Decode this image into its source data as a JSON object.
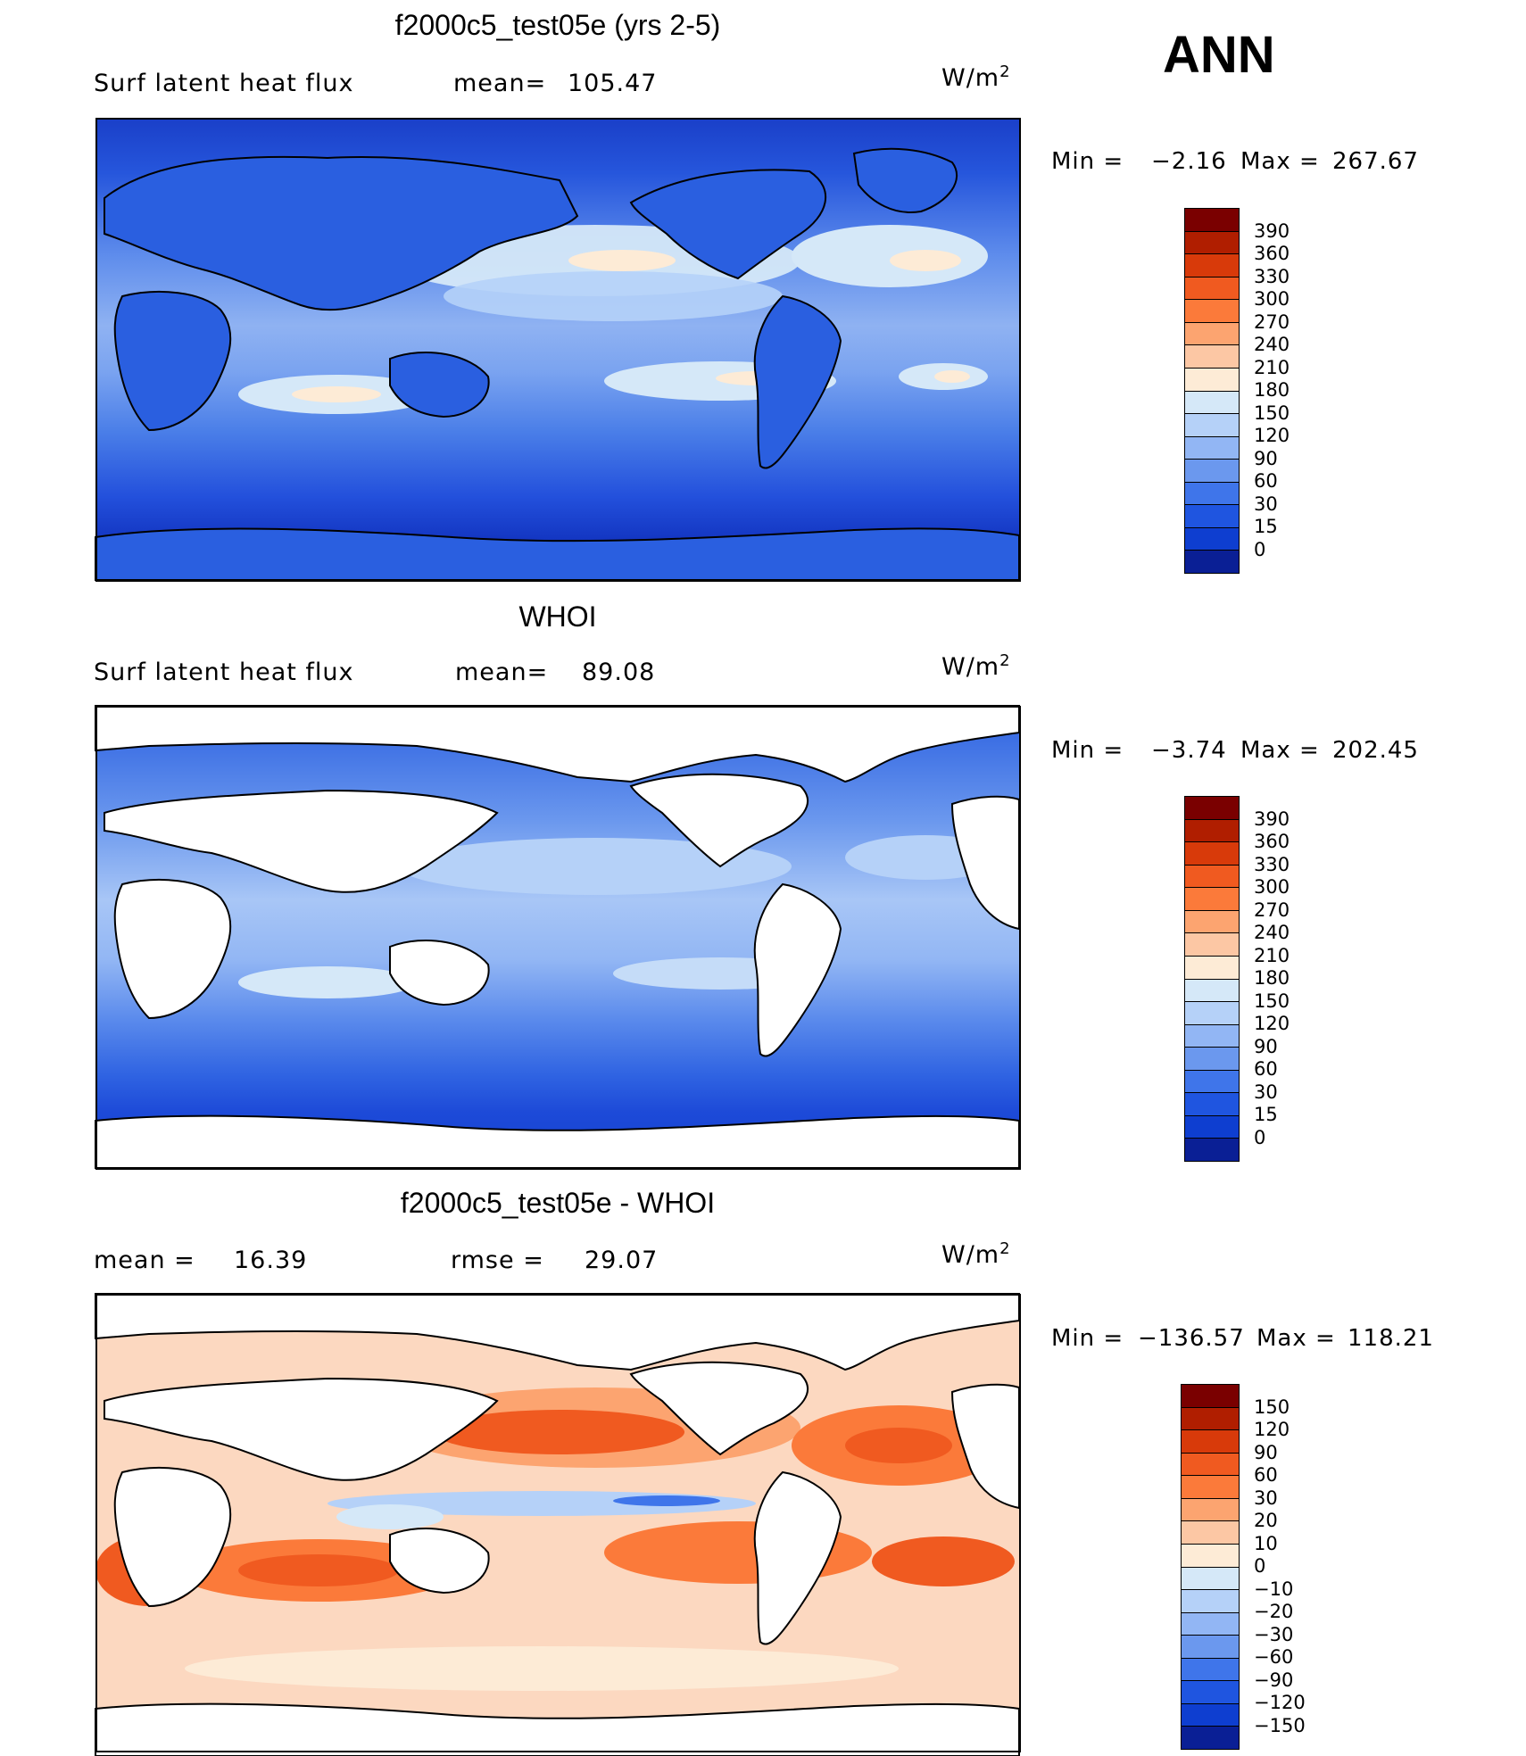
{
  "annotation": "ANN",
  "chart_data": [
    {
      "type": "heatmap",
      "title": "f2000c5_test05e (yrs 2-5)",
      "variable": "Surf latent heat flux",
      "mean_label": "mean=",
      "mean_value": "105.47",
      "units": "W/m",
      "units_sup": "2",
      "min_label": "Min =",
      "min_value": "−2.16",
      "max_label": "Max =",
      "max_value": "267.67",
      "colorbar": {
        "levels": [
          "390",
          "360",
          "330",
          "300",
          "270",
          "240",
          "210",
          "180",
          "150",
          "120",
          "90",
          "60",
          "30",
          "15",
          "0"
        ],
        "colors": [
          "#7a0000",
          "#b01e00",
          "#d83a0a",
          "#f05a20",
          "#fb7a3a",
          "#fca470",
          "#fcc7a4",
          "#fdebd6",
          "#d5e8f8",
          "#b5d1f8",
          "#92b6f4",
          "#6b98ee",
          "#3f75ea",
          "#1f55e0",
          "#0e3ed0",
          "#0a1f95"
        ]
      },
      "land_masked": false
    },
    {
      "type": "heatmap",
      "title": "WHOI",
      "variable": "Surf latent heat flux",
      "mean_label": "mean=",
      "mean_value": "89.08",
      "units": "W/m",
      "units_sup": "2",
      "min_label": "Min =",
      "min_value": "−3.74",
      "max_label": "Max =",
      "max_value": "202.45",
      "colorbar": {
        "levels": [
          "390",
          "360",
          "330",
          "300",
          "270",
          "240",
          "210",
          "180",
          "150",
          "120",
          "90",
          "60",
          "30",
          "15",
          "0"
        ],
        "colors": [
          "#7a0000",
          "#b01e00",
          "#d83a0a",
          "#f05a20",
          "#fb7a3a",
          "#fca470",
          "#fcc7a4",
          "#fdebd6",
          "#d5e8f8",
          "#b5d1f8",
          "#92b6f4",
          "#6b98ee",
          "#3f75ea",
          "#1f55e0",
          "#0e3ed0",
          "#0a1f95"
        ]
      },
      "land_masked": true
    },
    {
      "type": "heatmap",
      "title": "f2000c5_test05e - WHOI",
      "mean_label": "mean =",
      "mean_value": "16.39",
      "rmse_label": "rmse =",
      "rmse_value": "29.07",
      "units": "W/m",
      "units_sup": "2",
      "min_label": "Min =",
      "min_value": "−136.57",
      "max_label": "Max =",
      "max_value": "118.21",
      "colorbar": {
        "levels": [
          "150",
          "120",
          "90",
          "60",
          "30",
          "20",
          "10",
          "0",
          "−10",
          "−20",
          "−30",
          "−60",
          "−90",
          "−120",
          "−150"
        ],
        "colors": [
          "#7a0000",
          "#b01e00",
          "#d83a0a",
          "#f05a20",
          "#fb7a3a",
          "#fca470",
          "#fcc7a4",
          "#fdebd6",
          "#d5e8f8",
          "#b5d1f8",
          "#92b6f4",
          "#6b98ee",
          "#3f75ea",
          "#1f55e0",
          "#0e3ed0",
          "#0a1f95"
        ]
      },
      "land_masked": true
    }
  ]
}
